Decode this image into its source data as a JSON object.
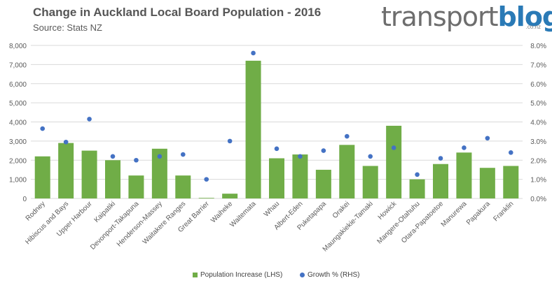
{
  "header": {
    "title": "Change in Auckland Local Board Population - 2016",
    "subtitle": "Source: Stats NZ"
  },
  "logo": {
    "part_a": "transport",
    "part_b": "blog",
    "sub": ".co.nz"
  },
  "colors": {
    "bar": "#70ad47",
    "dot": "#4472c4",
    "grid": "#d9d9d9",
    "axis_text": "#595959"
  },
  "chart_data": {
    "type": "bar",
    "title": "Change in Auckland Local Board Population - 2016",
    "categories": [
      "Rodney",
      "Hibiscus and Bays",
      "Upper Harbour",
      "Kaipatiki",
      "Devonport-Takapuna",
      "Henderson-Massey",
      "Waitakere Ranges",
      "Great Barrier",
      "Waiheke",
      "Waitemata",
      "Whau",
      "Albert-Eden",
      "Puketapapa",
      "Orakei",
      "Maungakiekie-Tamaki",
      "Howick",
      "Mangere-Otahuhu",
      "Otara-Papatoetoe",
      "Manurewa",
      "Papakura",
      "Franklin"
    ],
    "series": [
      {
        "name": "Population Increase (LHS)",
        "type": "bar",
        "axis": "left",
        "values": [
          2200,
          2900,
          2500,
          2000,
          1200,
          2600,
          1200,
          30,
          250,
          7200,
          2100,
          2300,
          1500,
          2800,
          1700,
          3800,
          1000,
          1800,
          2400,
          1600,
          1700
        ]
      },
      {
        "name": "Growth % (RHS)",
        "type": "scatter",
        "axis": "right",
        "values": [
          3.65,
          2.95,
          4.15,
          2.2,
          2.0,
          2.2,
          2.3,
          1.0,
          3.0,
          7.6,
          2.6,
          2.2,
          2.5,
          3.25,
          2.2,
          2.65,
          1.25,
          2.1,
          2.65,
          3.15,
          2.4
        ]
      }
    ],
    "ylim_left": [
      0,
      8000
    ],
    "ylim_right": [
      0,
      8
    ],
    "left_ticks": [
      "0",
      "1,000",
      "2,000",
      "3,000",
      "4,000",
      "5,000",
      "6,000",
      "7,000",
      "8,000"
    ],
    "right_ticks": [
      "0.0%",
      "1.0%",
      "2.0%",
      "3.0%",
      "4.0%",
      "5.0%",
      "6.0%",
      "7.0%",
      "8.0%"
    ],
    "grid": true,
    "legend_position": "bottom"
  }
}
